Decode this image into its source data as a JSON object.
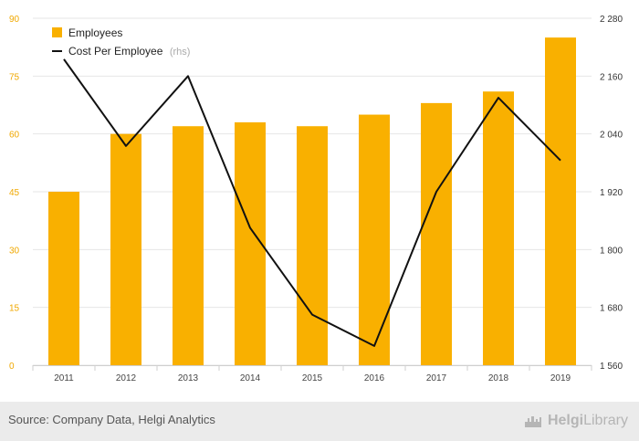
{
  "chart_data": {
    "type": "bar",
    "categories": [
      "2011",
      "2012",
      "2013",
      "2014",
      "2015",
      "2016",
      "2017",
      "2018",
      "2019"
    ],
    "series": [
      {
        "name": "Employees",
        "type": "bar",
        "axis": "left",
        "color": "#f9b000",
        "values": [
          45,
          60,
          62,
          63,
          62,
          65,
          68,
          71,
          85
        ]
      },
      {
        "name": "Cost Per Employee",
        "legend_suffix": "(rhs)",
        "type": "line",
        "axis": "right",
        "color": "#111111",
        "values": [
          2195,
          2015,
          2160,
          1845,
          1665,
          1600,
          1920,
          2115,
          1985
        ]
      }
    ],
    "y_left": {
      "min": 0,
      "max": 90,
      "ticks": [
        "0",
        "15",
        "30",
        "45",
        "60",
        "75",
        "90"
      ],
      "tick_color": "#f0a800"
    },
    "y_right": {
      "min": 1560,
      "max": 2280,
      "ticks": [
        "1 560",
        "1 680",
        "1 800",
        "1 920",
        "2 040",
        "2 160",
        "2 280"
      ]
    },
    "grid": true,
    "legend_position": "top-left"
  },
  "footer": {
    "source": "Source: Company Data, Helgi Analytics",
    "logo_left": "Helgi",
    "logo_right": "Library",
    "logo_icon": "city-skyline-icon"
  }
}
